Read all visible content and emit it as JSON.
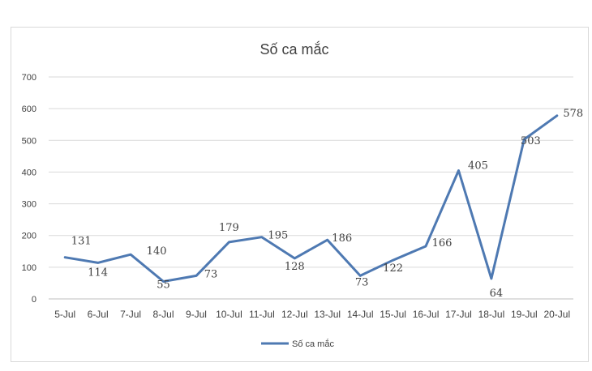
{
  "chart_data": {
    "type": "line",
    "title": "Số ca mắc",
    "categories": [
      "5-Jul",
      "6-Jul",
      "7-Jul",
      "8-Jul",
      "9-Jul",
      "10-Jul",
      "11-Jul",
      "12-Jul",
      "13-Jul",
      "14-Jul",
      "15-Jul",
      "16-Jul",
      "17-Jul",
      "18-Jul",
      "19-Jul",
      "20-Jul"
    ],
    "series": [
      {
        "name": "Số ca mắc",
        "values": [
          131,
          114,
          140,
          55,
          73,
          179,
          195,
          128,
          186,
          73,
          122,
          166,
          405,
          64,
          503,
          578
        ],
        "color": "#4e79b2"
      }
    ],
    "yticks": [
      "0",
      "100",
      "200",
      "300",
      "400",
      "500",
      "600",
      "700"
    ],
    "ylim": [
      0,
      700
    ],
    "grid": true,
    "legend": "bottom"
  }
}
